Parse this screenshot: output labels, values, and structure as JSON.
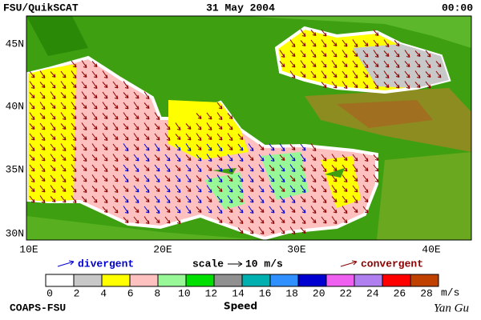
{
  "header": {
    "source": "FSU/QuikSCAT",
    "date": "31 May 2004",
    "time": "00:00"
  },
  "map": {
    "lat_labels": [
      "45N",
      "40N",
      "35N",
      "30N"
    ],
    "lon_labels": [
      "10E",
      "20E",
      "30E",
      "40E"
    ]
  },
  "legend": {
    "divergent": "divergent",
    "scale": "scale",
    "scale_value": "10 m/s",
    "convergent": "convergent"
  },
  "colorbar": {
    "colors": [
      "#ffffff",
      "#c8c8c8",
      "#ffff00",
      "#ffc0c0",
      "#98f898",
      "#00e000",
      "#909090",
      "#00b0b0",
      "#3090ff",
      "#0000d0",
      "#f060f0",
      "#b080f0",
      "#ff0000",
      "#c04000",
      "#000000"
    ],
    "ticks": [
      0,
      2,
      4,
      6,
      8,
      10,
      12,
      14,
      16,
      18,
      20,
      22,
      24,
      26,
      28
    ],
    "unit": "m/s",
    "title": "Speed"
  },
  "footer": {
    "credit": "COAPS-FSU",
    "author": "Yan Gu"
  }
}
